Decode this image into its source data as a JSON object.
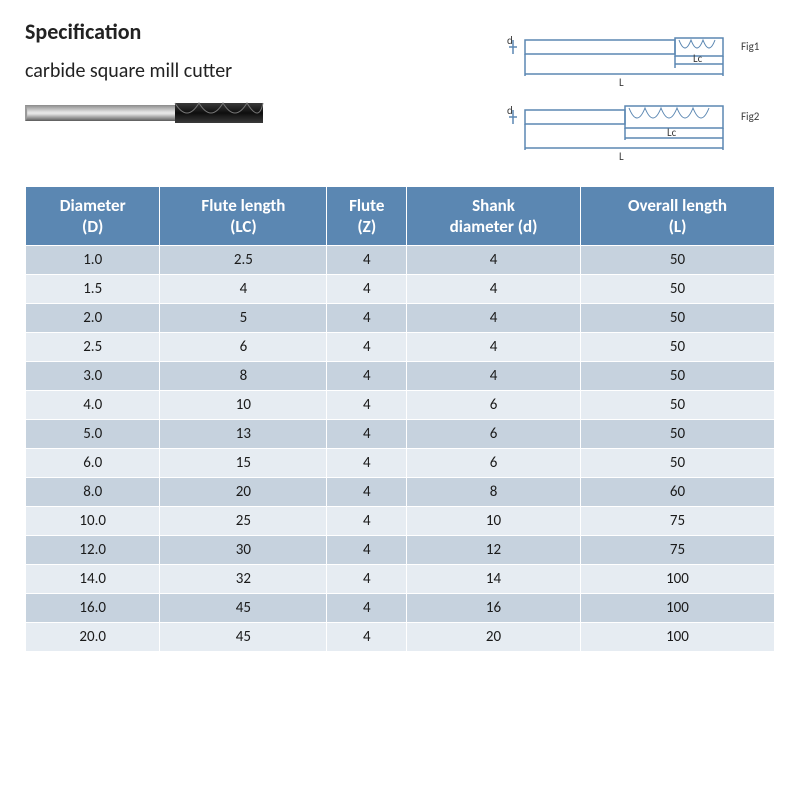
{
  "header": {
    "title": "Specification",
    "subtitle": "carbide square mill cutter"
  },
  "diagram": {
    "fig1_label": "Fig1",
    "fig2_label": "Fig2",
    "dim_L": "L",
    "dim_Lc": "Lc",
    "dim_d": "d",
    "line_color": "#5b87b2",
    "label_color": "#3c3c3c"
  },
  "product_photo": {
    "cutter_body_color": "#222222",
    "shank_dark": "#6a6a6a",
    "shank_light": "#b0b0b0"
  },
  "spec_table": {
    "type": "table",
    "header_bg": "#5b87b2",
    "header_fg": "#ffffff",
    "row_odd_bg": "#c6d2de",
    "row_even_bg": "#e6ecf2",
    "border_color": "#ffffff",
    "header_fontsize": 17,
    "cell_fontsize": 15,
    "columns": [
      {
        "label1": "Diameter",
        "label2": "(D)"
      },
      {
        "label1": "Flute length",
        "label2": "(LC)"
      },
      {
        "label1": "Flute",
        "label2": "(Z)"
      },
      {
        "label1": "Shank",
        "label2": "diameter (d)"
      },
      {
        "label1": "Overall length",
        "label2": "(L)"
      }
    ],
    "rows": [
      [
        "1.0",
        "2.5",
        "4",
        "4",
        "50"
      ],
      [
        "1.5",
        "4",
        "4",
        "4",
        "50"
      ],
      [
        "2.0",
        "5",
        "4",
        "4",
        "50"
      ],
      [
        "2.5",
        "6",
        "4",
        "4",
        "50"
      ],
      [
        "3.0",
        "8",
        "4",
        "4",
        "50"
      ],
      [
        "4.0",
        "10",
        "4",
        "6",
        "50"
      ],
      [
        "5.0",
        "13",
        "4",
        "6",
        "50"
      ],
      [
        "6.0",
        "15",
        "4",
        "6",
        "50"
      ],
      [
        "8.0",
        "20",
        "4",
        "8",
        "60"
      ],
      [
        "10.0",
        "25",
        "4",
        "10",
        "75"
      ],
      [
        "12.0",
        "30",
        "4",
        "12",
        "75"
      ],
      [
        "14.0",
        "32",
        "4",
        "14",
        "100"
      ],
      [
        "16.0",
        "45",
        "4",
        "16",
        "100"
      ],
      [
        "20.0",
        "45",
        "4",
        "20",
        "100"
      ]
    ]
  }
}
